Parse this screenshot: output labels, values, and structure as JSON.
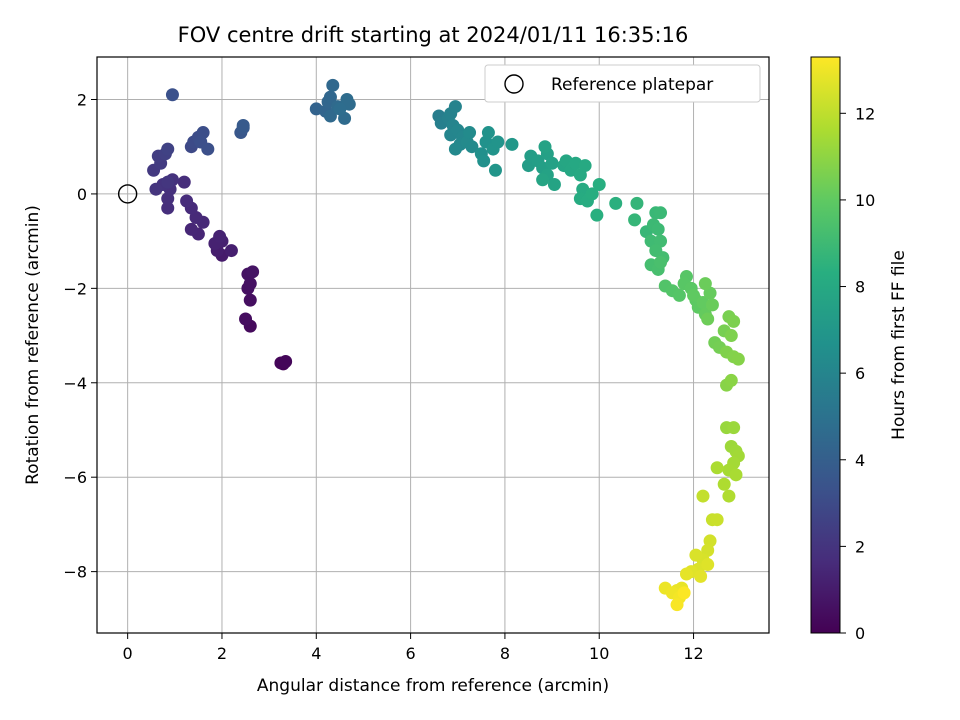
{
  "chart_data": {
    "type": "scatter",
    "title": "FOV centre drift starting at 2024/01/11 16:35:16",
    "xlabel": "Angular distance from reference (arcmin)",
    "ylabel": "Rotation from reference (arcmin)",
    "xlim": [
      -0.65,
      13.6
    ],
    "ylim": [
      -9.3,
      2.9
    ],
    "xticks": [
      0,
      2,
      4,
      6,
      8,
      10,
      12
    ],
    "xtick_labels": [
      "0",
      "2",
      "4",
      "6",
      "8",
      "10",
      "12"
    ],
    "yticks": [
      2,
      0,
      -2,
      -4,
      -6,
      -8
    ],
    "ytick_labels": [
      "2",
      "0",
      "−2",
      "−4",
      "−6",
      "−8"
    ],
    "grid": true,
    "colormap": "viridis",
    "colorbar": {
      "label": "Hours from first FF file",
      "range": [
        0,
        13.3
      ],
      "ticks": [
        0,
        2,
        4,
        6,
        8,
        10,
        12
      ],
      "tick_labels": [
        "0",
        "2",
        "4",
        "6",
        "8",
        "10",
        "12"
      ]
    },
    "legend": {
      "position": "upper-right",
      "entries": [
        "Reference platepar"
      ]
    },
    "reference_point": {
      "x": 0,
      "y": 0
    },
    "points": [
      {
        "x": 3.3,
        "y": -3.6,
        "h": 0.1
      },
      {
        "x": 3.25,
        "y": -3.58,
        "h": 0.15
      },
      {
        "x": 3.35,
        "y": -3.55,
        "h": 0.2
      },
      {
        "x": 2.6,
        "y": -2.8,
        "h": 0.35
      },
      {
        "x": 2.5,
        "y": -2.65,
        "h": 0.45
      },
      {
        "x": 2.6,
        "y": -2.25,
        "h": 0.5
      },
      {
        "x": 2.55,
        "y": -2.0,
        "h": 0.55
      },
      {
        "x": 2.6,
        "y": -1.9,
        "h": 0.6
      },
      {
        "x": 2.55,
        "y": -1.7,
        "h": 0.65
      },
      {
        "x": 2.65,
        "y": -1.65,
        "h": 0.7
      },
      {
        "x": 2.0,
        "y": -1.3,
        "h": 1.0
      },
      {
        "x": 1.9,
        "y": -1.2,
        "h": 1.1
      },
      {
        "x": 2.2,
        "y": -1.2,
        "h": 1.15
      },
      {
        "x": 2.0,
        "y": -1.0,
        "h": 1.2
      },
      {
        "x": 1.85,
        "y": -1.05,
        "h": 1.25
      },
      {
        "x": 1.95,
        "y": -0.9,
        "h": 1.3
      },
      {
        "x": 1.5,
        "y": -0.85,
        "h": 1.4
      },
      {
        "x": 1.35,
        "y": -0.75,
        "h": 1.45
      },
      {
        "x": 1.6,
        "y": -0.6,
        "h": 1.5
      },
      {
        "x": 1.45,
        "y": -0.5,
        "h": 1.55
      },
      {
        "x": 1.35,
        "y": -0.3,
        "h": 1.6
      },
      {
        "x": 1.25,
        "y": -0.15,
        "h": 1.65
      },
      {
        "x": 1.2,
        "y": 0.25,
        "h": 1.7
      },
      {
        "x": 0.85,
        "y": -0.3,
        "h": 1.75
      },
      {
        "x": 0.85,
        "y": -0.1,
        "h": 1.8
      },
      {
        "x": 0.9,
        "y": 0.1,
        "h": 1.85
      },
      {
        "x": 0.95,
        "y": 0.3,
        "h": 1.9
      },
      {
        "x": 0.75,
        "y": 0.2,
        "h": 1.95
      },
      {
        "x": 0.6,
        "y": 0.1,
        "h": 2.0
      },
      {
        "x": 0.85,
        "y": 0.25,
        "h": 2.05
      },
      {
        "x": 0.55,
        "y": 0.5,
        "h": 2.2
      },
      {
        "x": 0.7,
        "y": 0.65,
        "h": 2.3
      },
      {
        "x": 0.65,
        "y": 0.8,
        "h": 2.4
      },
      {
        "x": 0.8,
        "y": 0.85,
        "h": 2.5
      },
      {
        "x": 0.85,
        "y": 0.95,
        "h": 2.6
      },
      {
        "x": 1.35,
        "y": 1.0,
        "h": 2.9
      },
      {
        "x": 1.4,
        "y": 1.1,
        "h": 3.0
      },
      {
        "x": 1.5,
        "y": 1.2,
        "h": 3.1
      },
      {
        "x": 1.6,
        "y": 1.3,
        "h": 3.15
      },
      {
        "x": 1.55,
        "y": 1.1,
        "h": 3.2
      },
      {
        "x": 1.7,
        "y": 0.95,
        "h": 3.25
      },
      {
        "x": 0.95,
        "y": 2.1,
        "h": 3.3
      },
      {
        "x": 2.4,
        "y": 1.3,
        "h": 3.6
      },
      {
        "x": 2.45,
        "y": 1.4,
        "h": 3.7
      },
      {
        "x": 2.45,
        "y": 1.45,
        "h": 3.75
      },
      {
        "x": 4.0,
        "y": 1.8,
        "h": 4.2
      },
      {
        "x": 4.2,
        "y": 1.75,
        "h": 4.3
      },
      {
        "x": 4.25,
        "y": 1.95,
        "h": 4.35
      },
      {
        "x": 4.3,
        "y": 2.05,
        "h": 4.4
      },
      {
        "x": 4.35,
        "y": 2.3,
        "h": 4.45
      },
      {
        "x": 4.3,
        "y": 1.65,
        "h": 4.5
      },
      {
        "x": 4.45,
        "y": 1.85,
        "h": 4.55
      },
      {
        "x": 4.6,
        "y": 1.6,
        "h": 4.6
      },
      {
        "x": 4.65,
        "y": 2.0,
        "h": 4.65
      },
      {
        "x": 4.7,
        "y": 1.9,
        "h": 4.7
      },
      {
        "x": 4.5,
        "y": 1.8,
        "h": 4.75
      },
      {
        "x": 6.6,
        "y": 1.65,
        "h": 5.6
      },
      {
        "x": 6.65,
        "y": 1.5,
        "h": 5.7
      },
      {
        "x": 6.8,
        "y": 1.6,
        "h": 5.8
      },
      {
        "x": 6.85,
        "y": 1.7,
        "h": 5.85
      },
      {
        "x": 6.95,
        "y": 1.85,
        "h": 5.9
      },
      {
        "x": 6.9,
        "y": 1.45,
        "h": 5.95
      },
      {
        "x": 6.85,
        "y": 1.25,
        "h": 6.0
      },
      {
        "x": 7.0,
        "y": 1.35,
        "h": 6.05
      },
      {
        "x": 7.1,
        "y": 1.2,
        "h": 6.1
      },
      {
        "x": 7.05,
        "y": 1.05,
        "h": 6.15
      },
      {
        "x": 6.95,
        "y": 0.95,
        "h": 6.2
      },
      {
        "x": 7.2,
        "y": 1.1,
        "h": 6.25
      },
      {
        "x": 7.3,
        "y": 1.0,
        "h": 6.3
      },
      {
        "x": 7.25,
        "y": 1.3,
        "h": 6.35
      },
      {
        "x": 7.5,
        "y": 0.85,
        "h": 6.6
      },
      {
        "x": 7.55,
        "y": 0.7,
        "h": 6.65
      },
      {
        "x": 7.6,
        "y": 1.1,
        "h": 6.7
      },
      {
        "x": 7.65,
        "y": 1.3,
        "h": 6.75
      },
      {
        "x": 7.75,
        "y": 0.95,
        "h": 6.8
      },
      {
        "x": 7.85,
        "y": 1.1,
        "h": 6.85
      },
      {
        "x": 7.8,
        "y": 0.5,
        "h": 6.9
      },
      {
        "x": 8.15,
        "y": 1.05,
        "h": 7.0
      },
      {
        "x": 8.5,
        "y": 0.6,
        "h": 7.3
      },
      {
        "x": 8.55,
        "y": 0.8,
        "h": 7.35
      },
      {
        "x": 8.7,
        "y": 0.7,
        "h": 7.4
      },
      {
        "x": 8.8,
        "y": 0.55,
        "h": 7.45
      },
      {
        "x": 8.9,
        "y": 0.85,
        "h": 7.5
      },
      {
        "x": 9.0,
        "y": 0.65,
        "h": 7.55
      },
      {
        "x": 8.9,
        "y": 0.4,
        "h": 7.6
      },
      {
        "x": 8.85,
        "y": 1.0,
        "h": 7.65
      },
      {
        "x": 9.05,
        "y": 0.2,
        "h": 7.7
      },
      {
        "x": 8.8,
        "y": 0.3,
        "h": 7.75
      },
      {
        "x": 9.25,
        "y": 0.6,
        "h": 7.8
      },
      {
        "x": 9.3,
        "y": 0.7,
        "h": 7.85
      },
      {
        "x": 9.4,
        "y": 0.5,
        "h": 7.9
      },
      {
        "x": 9.5,
        "y": 0.65,
        "h": 7.95
      },
      {
        "x": 9.6,
        "y": 0.4,
        "h": 8.0
      },
      {
        "x": 9.7,
        "y": 0.6,
        "h": 8.05
      },
      {
        "x": 9.65,
        "y": 0.1,
        "h": 8.1
      },
      {
        "x": 9.6,
        "y": -0.1,
        "h": 8.15
      },
      {
        "x": 9.75,
        "y": -0.15,
        "h": 8.2
      },
      {
        "x": 9.85,
        "y": 0.0,
        "h": 8.25
      },
      {
        "x": 10.0,
        "y": 0.2,
        "h": 8.3
      },
      {
        "x": 9.95,
        "y": -0.45,
        "h": 8.35
      },
      {
        "x": 10.35,
        "y": -0.2,
        "h": 8.4
      },
      {
        "x": 10.8,
        "y": -0.2,
        "h": 8.7
      },
      {
        "x": 10.75,
        "y": -0.55,
        "h": 8.75
      },
      {
        "x": 11.0,
        "y": -0.8,
        "h": 8.8
      },
      {
        "x": 11.2,
        "y": -0.4,
        "h": 8.85
      },
      {
        "x": 11.3,
        "y": -0.4,
        "h": 8.9
      },
      {
        "x": 11.15,
        "y": -0.65,
        "h": 8.95
      },
      {
        "x": 11.25,
        "y": -0.75,
        "h": 9.0
      },
      {
        "x": 11.1,
        "y": -1.0,
        "h": 9.05
      },
      {
        "x": 11.3,
        "y": -1.0,
        "h": 9.1
      },
      {
        "x": 11.2,
        "y": -1.2,
        "h": 9.15
      },
      {
        "x": 11.35,
        "y": -1.35,
        "h": 9.2
      },
      {
        "x": 11.1,
        "y": -1.5,
        "h": 9.25
      },
      {
        "x": 11.25,
        "y": -1.6,
        "h": 9.3
      },
      {
        "x": 11.3,
        "y": -1.45,
        "h": 9.35
      },
      {
        "x": 11.4,
        "y": -1.95,
        "h": 9.6
      },
      {
        "x": 11.55,
        "y": -2.05,
        "h": 9.65
      },
      {
        "x": 11.7,
        "y": -2.15,
        "h": 9.7
      },
      {
        "x": 11.85,
        "y": -1.75,
        "h": 9.75
      },
      {
        "x": 11.8,
        "y": -1.9,
        "h": 9.8
      },
      {
        "x": 11.95,
        "y": -2.0,
        "h": 9.85
      },
      {
        "x": 12.05,
        "y": -2.25,
        "h": 9.9
      },
      {
        "x": 12.1,
        "y": -2.4,
        "h": 9.95
      },
      {
        "x": 12.0,
        "y": -2.15,
        "h": 10.0
      },
      {
        "x": 12.2,
        "y": -2.3,
        "h": 10.05
      },
      {
        "x": 12.25,
        "y": -2.55,
        "h": 10.1
      },
      {
        "x": 12.35,
        "y": -2.1,
        "h": 10.15
      },
      {
        "x": 12.4,
        "y": -2.35,
        "h": 10.2
      },
      {
        "x": 12.25,
        "y": -1.9,
        "h": 10.25
      },
      {
        "x": 12.3,
        "y": -2.65,
        "h": 10.3
      },
      {
        "x": 12.45,
        "y": -3.15,
        "h": 10.4
      },
      {
        "x": 12.55,
        "y": -3.25,
        "h": 10.45
      },
      {
        "x": 12.65,
        "y": -2.9,
        "h": 10.5
      },
      {
        "x": 12.75,
        "y": -2.6,
        "h": 10.55
      },
      {
        "x": 12.85,
        "y": -2.7,
        "h": 10.6
      },
      {
        "x": 12.8,
        "y": -3.0,
        "h": 10.65
      },
      {
        "x": 12.7,
        "y": -3.35,
        "h": 10.7
      },
      {
        "x": 12.85,
        "y": -3.45,
        "h": 10.75
      },
      {
        "x": 12.95,
        "y": -3.5,
        "h": 10.8
      },
      {
        "x": 12.7,
        "y": -4.05,
        "h": 10.85
      },
      {
        "x": 12.8,
        "y": -3.95,
        "h": 10.9
      },
      {
        "x": 12.7,
        "y": -4.95,
        "h": 11.2
      },
      {
        "x": 12.85,
        "y": -4.95,
        "h": 11.25
      },
      {
        "x": 12.8,
        "y": -5.35,
        "h": 11.3
      },
      {
        "x": 12.9,
        "y": -5.45,
        "h": 11.35
      },
      {
        "x": 12.95,
        "y": -5.55,
        "h": 11.4
      },
      {
        "x": 12.85,
        "y": -5.7,
        "h": 11.45
      },
      {
        "x": 12.75,
        "y": -5.85,
        "h": 11.5
      },
      {
        "x": 12.9,
        "y": -5.95,
        "h": 11.55
      },
      {
        "x": 12.5,
        "y": -5.8,
        "h": 11.6
      },
      {
        "x": 12.65,
        "y": -6.15,
        "h": 11.65
      },
      {
        "x": 12.75,
        "y": -6.4,
        "h": 11.7
      },
      {
        "x": 12.2,
        "y": -6.4,
        "h": 12.1
      },
      {
        "x": 12.4,
        "y": -6.9,
        "h": 12.2
      },
      {
        "x": 12.5,
        "y": -6.9,
        "h": 12.25
      },
      {
        "x": 12.35,
        "y": -7.35,
        "h": 12.4
      },
      {
        "x": 12.3,
        "y": -7.55,
        "h": 12.45
      },
      {
        "x": 12.2,
        "y": -7.75,
        "h": 12.5
      },
      {
        "x": 12.05,
        "y": -7.65,
        "h": 12.55
      },
      {
        "x": 12.1,
        "y": -7.95,
        "h": 12.6
      },
      {
        "x": 12.3,
        "y": -7.85,
        "h": 12.65
      },
      {
        "x": 11.95,
        "y": -8.0,
        "h": 12.7
      },
      {
        "x": 12.15,
        "y": -8.1,
        "h": 12.75
      },
      {
        "x": 11.85,
        "y": -8.05,
        "h": 12.8
      },
      {
        "x": 11.75,
        "y": -8.35,
        "h": 12.85
      },
      {
        "x": 11.65,
        "y": -8.4,
        "h": 12.9
      },
      {
        "x": 11.4,
        "y": -8.35,
        "h": 12.95
      },
      {
        "x": 11.55,
        "y": -8.45,
        "h": 13.0
      },
      {
        "x": 11.7,
        "y": -8.55,
        "h": 13.1
      },
      {
        "x": 11.65,
        "y": -8.7,
        "h": 13.2
      },
      {
        "x": 11.8,
        "y": -8.45,
        "h": 13.25
      }
    ]
  }
}
